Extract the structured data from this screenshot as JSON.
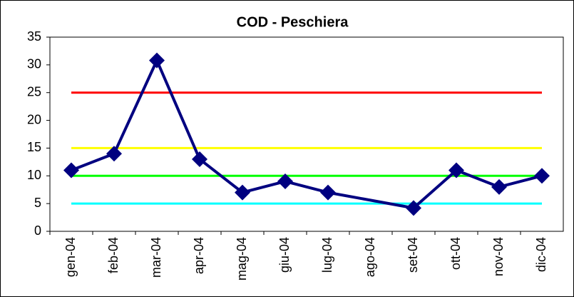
{
  "chart_data": {
    "type": "line",
    "title": "COD - Peschiera",
    "categories": [
      "gen-04",
      "feb-04",
      "mar-04",
      "apr-04",
      "mag-04",
      "giu-04",
      "lug-04",
      "ago-04",
      "set-04",
      "ott-04",
      "nov-04",
      "dic-04"
    ],
    "series": [
      {
        "name": "COD",
        "color": "#000080",
        "values": [
          11,
          14,
          30.8,
          13,
          7,
          9,
          7,
          null,
          4.2,
          11,
          8,
          10
        ]
      }
    ],
    "span_gaps": true,
    "reference_lines": [
      {
        "value": 25,
        "color": "#ff0000"
      },
      {
        "value": 15,
        "color": "#ffff00"
      },
      {
        "value": 10,
        "color": "#00ff00"
      },
      {
        "value": 5,
        "color": "#00ffff"
      }
    ],
    "ylim": [
      0,
      35
    ],
    "yticks": [
      0,
      5,
      10,
      15,
      20,
      25,
      30,
      35
    ],
    "grid": false
  }
}
